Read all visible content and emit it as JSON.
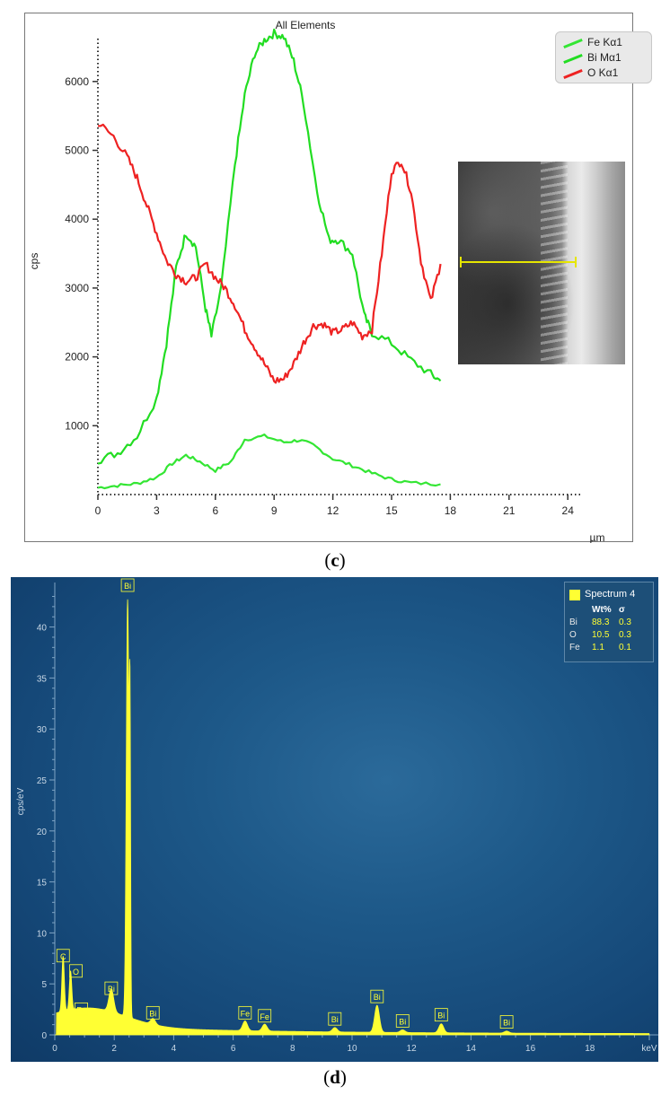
{
  "captions": {
    "c_label": "c",
    "d_label": "d"
  },
  "chart_data": [
    {
      "type": "line",
      "title": "All Elements",
      "xlabel": "µm",
      "ylabel": "cps",
      "xlim": [
        0,
        25
      ],
      "ylim": [
        0,
        7000
      ],
      "xticks": [
        0,
        3,
        6,
        9,
        12,
        15,
        18,
        21,
        24
      ],
      "xtick_labels": [
        "0",
        "3",
        "6",
        "9",
        "12",
        "15",
        "18",
        "21",
        "24"
      ],
      "yticks": [
        1000,
        2000,
        3000,
        4000,
        5000,
        6000
      ],
      "ytick_labels": [
        "1000",
        "2000",
        "3000",
        "4000",
        "5000",
        "6000"
      ],
      "legend_position": "top-right",
      "inset": "SEM image with yellow line scan",
      "series": [
        {
          "name": "Fe Kα1",
          "color": "#33e633",
          "points": [
            [
              0,
              100
            ],
            [
              1,
              130
            ],
            [
              2,
              160
            ],
            [
              3,
              250
            ],
            [
              3.8,
              450
            ],
            [
              4.5,
              570
            ],
            [
              5.2,
              480
            ],
            [
              6,
              350
            ],
            [
              6.8,
              480
            ],
            [
              7.5,
              800
            ],
            [
              8.5,
              850
            ],
            [
              9.5,
              760
            ],
            [
              10.3,
              790
            ],
            [
              11,
              720
            ],
            [
              12,
              520
            ],
            [
              13,
              420
            ],
            [
              14,
              310
            ],
            [
              15,
              220
            ],
            [
              16,
              170
            ],
            [
              17.5,
              150
            ]
          ]
        },
        {
          "name": "Bi Mα1",
          "color": "#22dd22",
          "points": [
            [
              0,
              500
            ],
            [
              1,
              600
            ],
            [
              2,
              850
            ],
            [
              3,
              1400
            ],
            [
              3.5,
              2200
            ],
            [
              4,
              3300
            ],
            [
              4.5,
              3800
            ],
            [
              5,
              3600
            ],
            [
              5.5,
              2700
            ],
            [
              5.8,
              2300
            ],
            [
              6.3,
              3000
            ],
            [
              7,
              4800
            ],
            [
              7.5,
              5800
            ],
            [
              8,
              6400
            ],
            [
              8.5,
              6600
            ],
            [
              9,
              6700
            ],
            [
              9.5,
              6650
            ],
            [
              10,
              6300
            ],
            [
              10.5,
              5700
            ],
            [
              11.2,
              4400
            ],
            [
              11.8,
              3700
            ],
            [
              12.3,
              3700
            ],
            [
              13,
              3500
            ],
            [
              13.6,
              2600
            ],
            [
              14,
              2350
            ],
            [
              15,
              2200
            ],
            [
              16,
              1950
            ],
            [
              17,
              1750
            ],
            [
              17.5,
              1650
            ]
          ]
        },
        {
          "name": "O Kα1",
          "color": "#ee2222",
          "points": [
            [
              0,
              5400
            ],
            [
              0.8,
              5200
            ],
            [
              1.5,
              4900
            ],
            [
              2,
              4600
            ],
            [
              2.5,
              4200
            ],
            [
              3,
              3800
            ],
            [
              3.5,
              3400
            ],
            [
              4,
              3200
            ],
            [
              4.5,
              3100
            ],
            [
              5,
              3150
            ],
            [
              5.5,
              3350
            ],
            [
              6,
              3150
            ],
            [
              6.5,
              3000
            ],
            [
              7,
              2750
            ],
            [
              7.5,
              2400
            ],
            [
              8,
              2150
            ],
            [
              8.5,
              1900
            ],
            [
              9,
              1650
            ],
            [
              9.5,
              1680
            ],
            [
              10,
              1900
            ],
            [
              10.5,
              2200
            ],
            [
              11,
              2450
            ],
            [
              11.5,
              2480
            ],
            [
              12,
              2350
            ],
            [
              12.5,
              2400
            ],
            [
              13,
              2500
            ],
            [
              13.5,
              2300
            ],
            [
              14,
              2400
            ],
            [
              14.5,
              3500
            ],
            [
              15,
              4700
            ],
            [
              15.5,
              4850
            ],
            [
              16,
              4400
            ],
            [
              16.5,
              3400
            ],
            [
              17,
              2800
            ],
            [
              17.5,
              3350
            ]
          ]
        }
      ]
    },
    {
      "type": "area",
      "xlabel": "keV",
      "ylabel": "cps/eV",
      "xlim": [
        0,
        20
      ],
      "ylim": [
        0,
        43
      ],
      "xticks": [
        0,
        2,
        4,
        6,
        8,
        10,
        12,
        14,
        16,
        18
      ],
      "xtick_labels": [
        "0",
        "2",
        "4",
        "6",
        "8",
        "10",
        "12",
        "14",
        "16",
        "18"
      ],
      "yticks": [
        0,
        5,
        10,
        15,
        20,
        25,
        30,
        35,
        40
      ],
      "ytick_labels": [
        "0",
        "5",
        "10",
        "15",
        "20",
        "25",
        "30",
        "35",
        "40"
      ],
      "series_name": "Spectrum 4",
      "color": "#ffff33",
      "table": {
        "headers": [
          "",
          "Wt%",
          "σ"
        ],
        "rows": [
          [
            "Bi",
            "88.3",
            "0.3"
          ],
          [
            "O",
            "10.5",
            "0.3"
          ],
          [
            "Fe",
            "1.1",
            "0.1"
          ]
        ]
      },
      "peaks": [
        {
          "label": "C",
          "x": 0.28,
          "y": 6.8
        },
        {
          "label": "O",
          "x": 0.53,
          "y": 5.3
        },
        {
          "label": "Fe",
          "x": 0.71,
          "y": 1.2
        },
        {
          "label": "Bi",
          "x": 1.9,
          "y": 3.6
        },
        {
          "label": "Bi",
          "x": 2.45,
          "y": 42
        },
        {
          "label": "Bi",
          "x": 3.3,
          "y": 1.2
        },
        {
          "label": "Fe",
          "x": 6.4,
          "y": 1.2
        },
        {
          "label": "Fe",
          "x": 7.06,
          "y": 0.9
        },
        {
          "label": "Bi",
          "x": 9.42,
          "y": 0.6
        },
        {
          "label": "Bi",
          "x": 10.84,
          "y": 2.8
        },
        {
          "label": "Bi",
          "x": 11.7,
          "y": 0.4
        },
        {
          "label": "Bi",
          "x": 13.0,
          "y": 1.0
        },
        {
          "label": "Bi",
          "x": 15.2,
          "y": 0.3
        }
      ]
    }
  ]
}
